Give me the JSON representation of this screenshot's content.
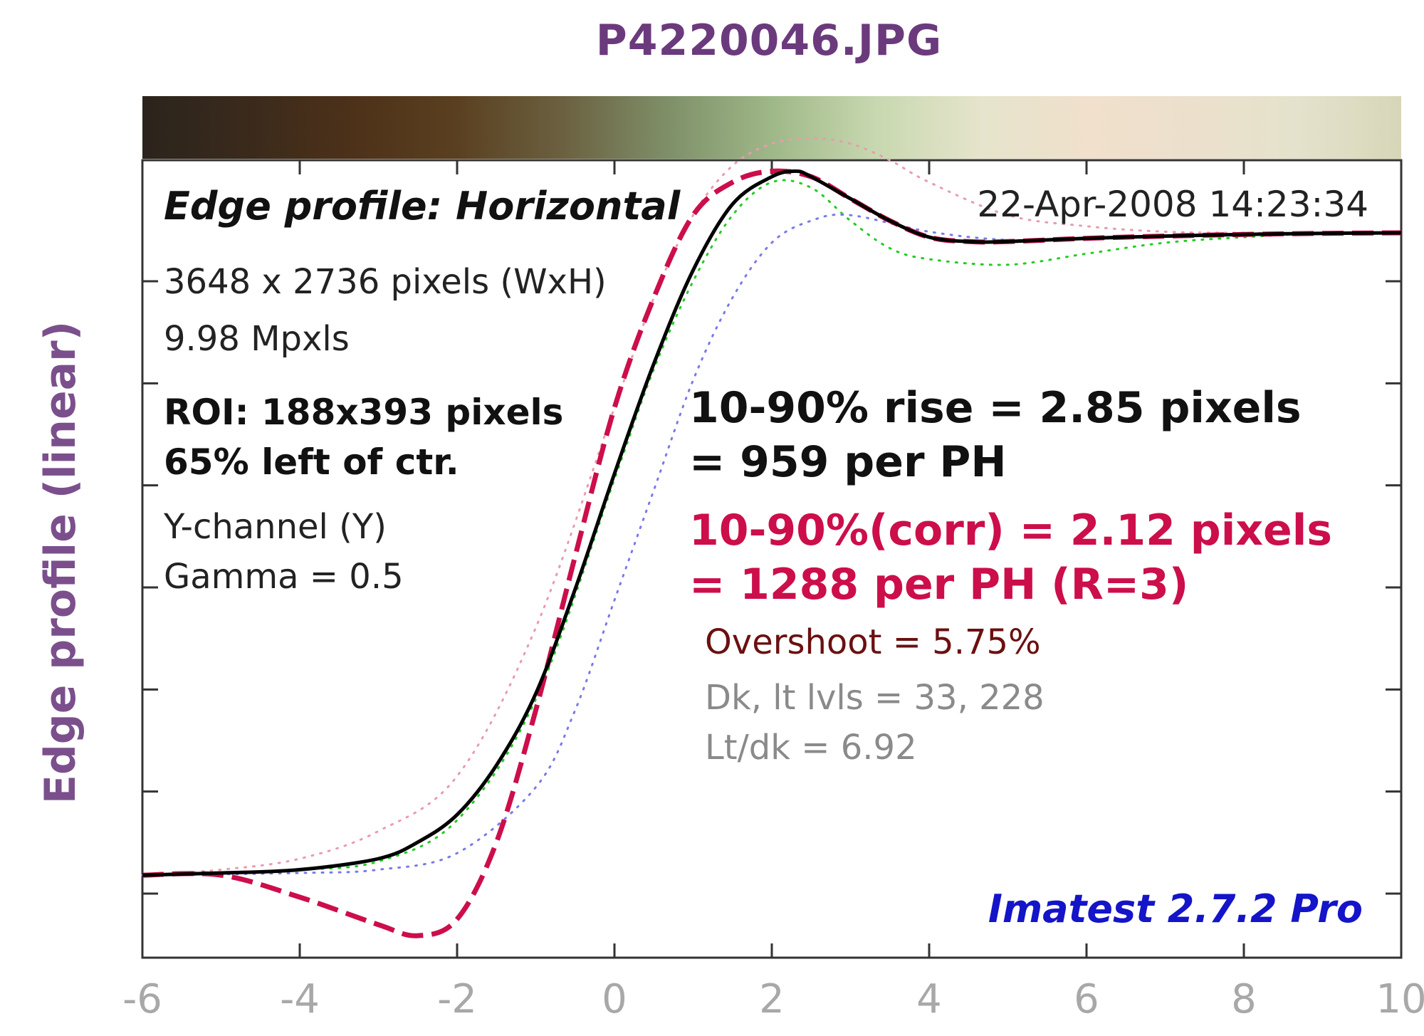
{
  "header": {
    "title": "P4220046.JPG"
  },
  "info": {
    "edge_title": "Edge profile: Horizontal",
    "date": "22-Apr-2008 14:23:34",
    "dims": "3648 x 2736 pixels (WxH)",
    "mpx": "9.98 Mpxls",
    "roi": "ROI:  188x393 pixels",
    "pos": "65% left of ctr.",
    "channel": "Y-channel  (Y)",
    "gamma": "Gamma = 0.5",
    "rise": "10-90% rise = 2.85 pixels",
    "rise_ph": "= 959 per PH",
    "corr": "10-90%(corr) = 2.12 pixels",
    "corr_ph": "= 1288 per PH  (R=3)",
    "overshoot": "Overshoot = 5.75%",
    "levels": "Dk, lt lvls = 33, 228",
    "ratio": "Lt/dk = 6.92",
    "brand": "Imatest 2.7.2 Pro"
  },
  "chart_data": {
    "type": "line",
    "title": "P4220046.JPG",
    "xlabel": "",
    "ylabel": "Edge profile (linear)",
    "xlim": [
      -6,
      10
    ],
    "ylim": [
      -0.15,
      1.3
    ],
    "x_ticks": [
      -6,
      -4,
      -2,
      0,
      2,
      4,
      6,
      8,
      10
    ],
    "x_tick_labels": [
      "-6",
      "-4",
      "-2",
      "0",
      "2",
      "4",
      "6",
      "8",
      "10"
    ],
    "grid": false,
    "colorbar_stops": [
      "#2b241c",
      "#3a2a1c",
      "#4d3119",
      "#5a4020",
      "#6b6040",
      "#7e8f68",
      "#9fb888",
      "#c8d8b0",
      "#e6e4cc",
      "#f0e0cc",
      "#ece0cc",
      "#e4e2cc",
      "#d8d6b8"
    ],
    "series": [
      {
        "color": "#000000",
        "style": "solid",
        "x": [
          -6,
          -5,
          -4,
          -3,
          -2.5,
          -2,
          -1.5,
          -1,
          -0.5,
          0,
          0.5,
          1,
          1.5,
          2,
          2.3,
          2.5,
          3,
          3.5,
          4,
          4.5,
          5,
          6,
          7,
          8,
          9,
          10
        ],
        "y": [
          0,
          0.004,
          0.01,
          0.03,
          0.06,
          0.11,
          0.2,
          0.33,
          0.52,
          0.73,
          0.93,
          1.1,
          1.22,
          1.27,
          1.28,
          1.27,
          1.23,
          1.19,
          1.16,
          1.152,
          1.152,
          1.158,
          1.162,
          1.165,
          1.167,
          1.168
        ]
      },
      {
        "color": "#cc0e4a",
        "style": "dashed",
        "x": [
          -6,
          -5,
          -4,
          -3,
          -2.5,
          -2,
          -1.5,
          -1,
          -0.5,
          0,
          0.5,
          1,
          1.5,
          2,
          2.5,
          3,
          3.5,
          4,
          4.5,
          5,
          6,
          7,
          8,
          9,
          10
        ],
        "y": [
          0,
          0,
          -0.04,
          -0.09,
          -0.11,
          -0.08,
          0.06,
          0.3,
          0.58,
          0.85,
          1.05,
          1.2,
          1.26,
          1.28,
          1.27,
          1.23,
          1.19,
          1.16,
          1.152,
          1.152,
          1.158,
          1.162,
          1.165,
          1.167,
          1.168
        ]
      },
      {
        "color": "#22cc22",
        "style": "dotted",
        "x": [
          -6,
          -5,
          -4,
          -3,
          -2,
          -1,
          0,
          0.5,
          1,
          1.5,
          2,
          2.5,
          3,
          3.5,
          4,
          5,
          6,
          7,
          8,
          9,
          10
        ],
        "y": [
          0,
          0.004,
          0.01,
          0.025,
          0.1,
          0.32,
          0.72,
          0.92,
          1.08,
          1.2,
          1.26,
          1.25,
          1.19,
          1.14,
          1.12,
          1.11,
          1.13,
          1.15,
          1.16,
          1.167,
          1.168
        ]
      },
      {
        "color": "#e89cb0",
        "style": "dotted",
        "x": [
          -6,
          -5,
          -4,
          -3,
          -2,
          -1,
          0,
          0.5,
          1,
          1.5,
          2,
          2.5,
          3,
          3.5,
          4,
          5,
          6,
          7,
          8,
          9,
          10
        ],
        "y": [
          0,
          0.01,
          0.03,
          0.08,
          0.18,
          0.45,
          0.85,
          1.05,
          1.2,
          1.29,
          1.33,
          1.34,
          1.33,
          1.3,
          1.26,
          1.2,
          1.18,
          1.17,
          1.168,
          1.168,
          1.168
        ]
      },
      {
        "color": "#7a7ae8",
        "style": "dotted",
        "x": [
          -6,
          -4,
          -3,
          -2,
          -1,
          -0.5,
          0,
          0.5,
          1,
          1.5,
          2,
          2.5,
          3,
          4,
          5,
          6,
          7,
          8,
          9,
          10
        ],
        "y": [
          0,
          0.004,
          0.01,
          0.04,
          0.16,
          0.3,
          0.5,
          0.7,
          0.9,
          1.05,
          1.15,
          1.19,
          1.2,
          1.17,
          1.155,
          1.158,
          1.162,
          1.165,
          1.167,
          1.168
        ]
      }
    ]
  }
}
